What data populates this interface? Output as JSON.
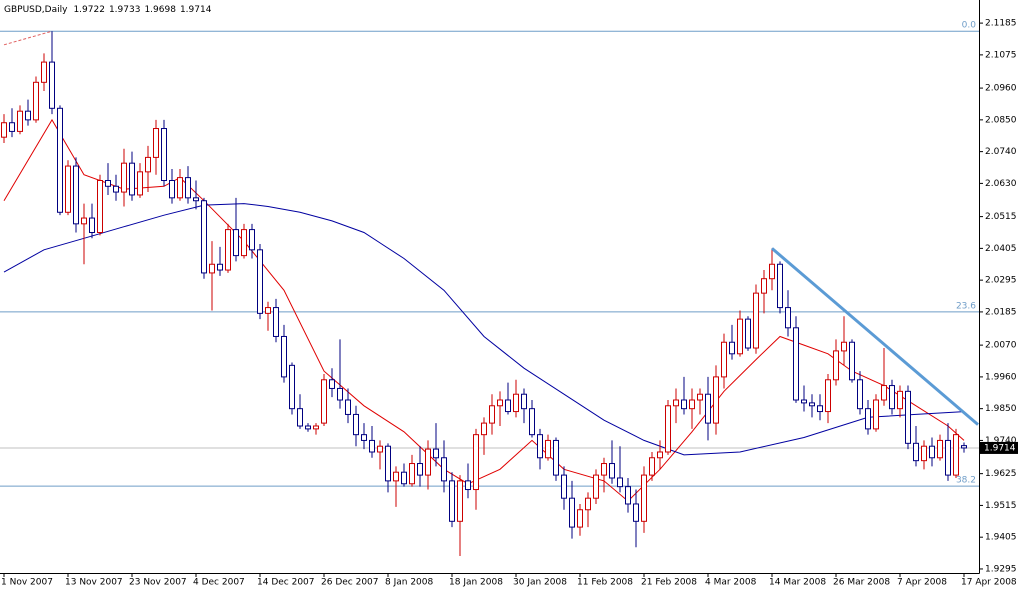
{
  "chart_data": {
    "type": "candlestick",
    "title": "GBPUSD,Daily",
    "categories": [
      "1 Nov 2007",
      null,
      null,
      null,
      null,
      null,
      null,
      null,
      "13 Nov 2007",
      null,
      null,
      null,
      null,
      null,
      null,
      null,
      "23 Nov 2007",
      null,
      null,
      null,
      null,
      null,
      null,
      null,
      "4 Dec 2007",
      null,
      null,
      null,
      null,
      null,
      null,
      null,
      "14 Dec 2007",
      null,
      null,
      null,
      null,
      null,
      null,
      null,
      "26 Dec 2007",
      null,
      null,
      null,
      null,
      null,
      null,
      null,
      "8 Jan 2008",
      null,
      null,
      null,
      null,
      null,
      null,
      null,
      "18 Jan 2008",
      null,
      null,
      null,
      null,
      null,
      null,
      null,
      "30 Jan 2008",
      null,
      null,
      null,
      null,
      null,
      null,
      null,
      "11 Feb 2008",
      null,
      null,
      null,
      null,
      null,
      null,
      null,
      "21 Feb 2008",
      null,
      null,
      null,
      null,
      null,
      null,
      null,
      "4 Mar 2008",
      null,
      null,
      null,
      null,
      null,
      null,
      null,
      "14 Mar 2008",
      null,
      null,
      null,
      null,
      null,
      null,
      null,
      "26 Mar 2008",
      null,
      null,
      null,
      null,
      null,
      null,
      null,
      "7 Apr 2008",
      null,
      null,
      null,
      null,
      null,
      null,
      null,
      "17 Apr 2008"
    ],
    "open": [
      2.079,
      2.084,
      2.081,
      2.088,
      2.085,
      2.098,
      2.105,
      2.089,
      2.053,
      2.069,
      2.049,
      2.051,
      2.046,
      2.064,
      2.062,
      2.06,
      2.07,
      2.059,
      2.067,
      2.072,
      2.082,
      2.064,
      2.058,
      2.065,
      2.058,
      2.057,
      2.032,
      2.035,
      2.033,
      2.047,
      2.038,
      2.047,
      2.04,
      2.018,
      2.02,
      2.01,
      2.0,
      1.985,
      1.979,
      1.978,
      1.98,
      1.995,
      1.992,
      1.988,
      1.983,
      1.976,
      1.974,
      1.97,
      1.972,
      1.96,
      1.963,
      1.959,
      1.966,
      1.962,
      1.971,
      1.968,
      1.96,
      1.946,
      1.96,
      1.957,
      1.976,
      1.98,
      1.986,
      1.988,
      1.984,
      1.99,
      1.985,
      1.976,
      1.968,
      1.974,
      1.962,
      1.954,
      1.944,
      1.95,
      1.954,
      1.962,
      1.966,
      1.961,
      1.958,
      1.952,
      1.946,
      1.962,
      1.968,
      1.97,
      1.986,
      1.988,
      1.985,
      1.988,
      1.99,
      1.98,
      1.996,
      2.008,
      2.004,
      2.016,
      2.006,
      2.025,
      2.03,
      2.035,
      2.02,
      2.013,
      1.988,
      1.987,
      1.986,
      1.984,
      1.995,
      2.005,
      2.008,
      1.995,
      1.985,
      1.978,
      1.988,
      1.993,
      1.985,
      1.991,
      1.973,
      1.967,
      1.972,
      1.968,
      1.974,
      1.962,
      1.9722
    ],
    "high": [
      2.087,
      2.089,
      2.09,
      2.092,
      2.1,
      2.108,
      2.1157,
      2.09,
      2.071,
      2.072,
      2.056,
      2.056,
      2.066,
      2.07,
      2.066,
      2.075,
      2.074,
      2.07,
      2.076,
      2.085,
      2.085,
      2.068,
      2.068,
      2.069,
      2.064,
      2.058,
      2.043,
      2.041,
      2.049,
      2.058,
      2.049,
      2.049,
      2.042,
      2.022,
      2.023,
      2.014,
      2.001,
      1.99,
      1.98,
      1.98,
      1.997,
      1.999,
      2.009,
      1.992,
      1.986,
      1.98,
      1.979,
      1.974,
      1.973,
      1.965,
      1.966,
      1.969,
      1.972,
      1.974,
      1.98,
      1.974,
      1.963,
      1.962,
      1.966,
      1.978,
      1.982,
      1.99,
      1.991,
      1.994,
      1.995,
      1.992,
      1.988,
      1.978,
      1.976,
      1.975,
      1.965,
      1.96,
      1.952,
      1.956,
      1.964,
      1.968,
      1.974,
      1.972,
      1.961,
      1.957,
      1.965,
      1.97,
      1.974,
      1.988,
      1.992,
      1.996,
      1.992,
      1.992,
      1.996,
      2.0,
      2.011,
      2.014,
      2.019,
      2.017,
      2.028,
      2.033,
      2.0405,
      2.036,
      2.026,
      2.017,
      1.993,
      1.99,
      1.99,
      1.997,
      2.009,
      2.017,
      2.009,
      1.998,
      1.988,
      1.99,
      2.006,
      1.995,
      1.993,
      1.993,
      1.979,
      1.974,
      1.975,
      1.976,
      1.98,
      1.978,
      1.9733
    ],
    "low": [
      2.077,
      2.079,
      2.08,
      2.083,
      2.084,
      2.095,
      2.087,
      2.052,
      2.052,
      2.046,
      2.035,
      2.044,
      2.045,
      2.059,
      2.057,
      2.055,
      2.057,
      2.058,
      2.06,
      2.066,
      2.062,
      2.056,
      2.057,
      2.056,
      2.054,
      2.03,
      2.019,
      2.031,
      2.032,
      2.036,
      2.037,
      2.037,
      2.016,
      2.012,
      2.008,
      1.994,
      1.983,
      1.978,
      1.977,
      1.976,
      1.979,
      1.989,
      1.985,
      1.98,
      1.972,
      1.971,
      1.968,
      1.964,
      1.956,
      1.951,
      1.958,
      1.958,
      1.958,
      1.957,
      1.965,
      1.956,
      1.944,
      1.934,
      1.954,
      1.95,
      1.969,
      1.976,
      1.979,
      1.983,
      1.982,
      1.98,
      1.975,
      1.964,
      1.967,
      1.96,
      1.95,
      1.94,
      1.941,
      1.944,
      1.952,
      1.956,
      1.959,
      1.956,
      1.949,
      1.937,
      1.942,
      1.96,
      1.964,
      1.969,
      1.98,
      1.983,
      1.978,
      1.983,
      1.974,
      1.976,
      1.992,
      2.002,
      2.003,
      2.005,
      2.004,
      2.018,
      2.026,
      2.018,
      2.01,
      1.987,
      1.984,
      1.982,
      1.981,
      1.98,
      1.993,
      2.0,
      1.994,
      1.983,
      1.976,
      1.977,
      1.986,
      1.983,
      1.982,
      1.971,
      1.965,
      1.964,
      1.965,
      1.967,
      1.96,
      1.961,
      1.9698
    ],
    "close": [
      2.084,
      2.081,
      2.088,
      2.085,
      2.098,
      2.105,
      2.089,
      2.053,
      2.069,
      2.049,
      2.051,
      2.046,
      2.064,
      2.062,
      2.06,
      2.07,
      2.059,
      2.067,
      2.072,
      2.082,
      2.064,
      2.058,
      2.065,
      2.058,
      2.057,
      2.032,
      2.035,
      2.033,
      2.047,
      2.038,
      2.047,
      2.04,
      2.018,
      2.02,
      2.01,
      1.996,
      1.985,
      1.979,
      1.978,
      1.979,
      1.995,
      1.992,
      1.988,
      1.983,
      1.976,
      1.974,
      1.97,
      1.972,
      1.96,
      1.963,
      1.959,
      1.966,
      1.962,
      1.971,
      1.968,
      1.96,
      1.946,
      1.96,
      1.957,
      1.976,
      1.98,
      1.986,
      1.988,
      1.984,
      1.99,
      1.985,
      1.976,
      1.968,
      1.974,
      1.962,
      1.954,
      1.944,
      1.95,
      1.954,
      1.962,
      1.966,
      1.961,
      1.958,
      1.952,
      1.946,
      1.962,
      1.968,
      1.97,
      1.986,
      1.988,
      1.985,
      1.988,
      1.99,
      1.98,
      1.996,
      2.008,
      2.004,
      2.016,
      2.006,
      2.025,
      2.03,
      2.035,
      2.02,
      2.013,
      1.988,
      1.987,
      1.986,
      1.984,
      1.995,
      2.005,
      2.008,
      1.995,
      1.985,
      1.978,
      1.988,
      1.993,
      1.985,
      1.991,
      1.973,
      1.967,
      1.972,
      1.968,
      1.974,
      1.962,
      1.976,
      1.9714
    ],
    "up_color": "#cc0000",
    "down_color": "#000080",
    "ylim": [
      1.9281,
      2.1265
    ],
    "yticks": [
      2.1185,
      {
        "value": 2.1075,
        "label": "2.1075"
      },
      {
        "value": 2.096,
        "label": "2.0960"
      },
      {
        "value": 2.085,
        "label": "2.0850"
      },
      {
        "value": 2.074,
        "label": "2.0740"
      },
      {
        "value": 2.063,
        "label": "2.0630"
      },
      2.0515,
      2.0405,
      2.0295,
      2.0185,
      {
        "value": 2.007,
        "label": "2.0070"
      },
      {
        "value": 1.996,
        "label": "1.9960"
      },
      {
        "value": 1.985,
        "label": "1.9850"
      },
      {
        "value": 1.974,
        "label": "1.9740"
      },
      1.9625,
      1.9515,
      1.9405,
      1.9295
    ],
    "moving_averages": [
      {
        "color": "#e00000",
        "x": [
          0,
          6,
          10,
          15,
          20,
          22,
          25,
          30,
          35,
          40,
          45,
          50,
          55,
          58,
          62,
          66,
          70,
          75,
          78,
          82,
          86,
          90,
          94,
          97,
          100,
          103,
          106,
          110,
          114,
          118,
          120
        ],
        "values": [
          2.057,
          2.085,
          2.066,
          2.061,
          2.062,
          2.065,
          2.057,
          2.043,
          2.026,
          1.998,
          1.986,
          1.977,
          1.964,
          1.959,
          1.964,
          1.974,
          1.964,
          1.96,
          1.953,
          1.964,
          1.977,
          1.991,
          2.002,
          2.01,
          2.007,
          2.004,
          1.998,
          1.993,
          1.986,
          1.979,
          1.974
        ]
      },
      {
        "color": "#0000a0",
        "x": [
          0,
          5,
          10,
          15,
          20,
          25,
          30,
          33,
          37,
          41,
          45,
          50,
          55,
          60,
          65,
          70,
          75,
          80,
          85,
          92,
          100,
          108,
          114,
          120
        ],
        "values": [
          2.0323,
          2.04,
          2.044,
          2.048,
          2.052,
          2.0555,
          2.056,
          2.055,
          2.053,
          2.05,
          2.046,
          2.037,
          2.026,
          2.01,
          1.999,
          1.99,
          1.981,
          1.974,
          1.969,
          1.97,
          1.975,
          1.982,
          1.983,
          1.984
        ]
      }
    ],
    "levels": [
      {
        "value": 2.1157,
        "label": "0.0"
      },
      {
        "value": 2.0185,
        "label": "23.6"
      },
      {
        "value": 1.9582,
        "label": "38.2"
      }
    ],
    "level_color": "#6f9dc8",
    "price_line_color": "#c0c0c0",
    "trendlines": [
      {
        "x": [
          0,
          6
        ],
        "values": [
          2.111,
          2.1157
        ],
        "color": "#e06060",
        "dashed": true
      },
      {
        "x": [
          96,
          121.75
        ],
        "values": [
          2.0405,
          1.9795
        ],
        "color": "#5b9bd5",
        "dashed": false
      }
    ]
  }
}
